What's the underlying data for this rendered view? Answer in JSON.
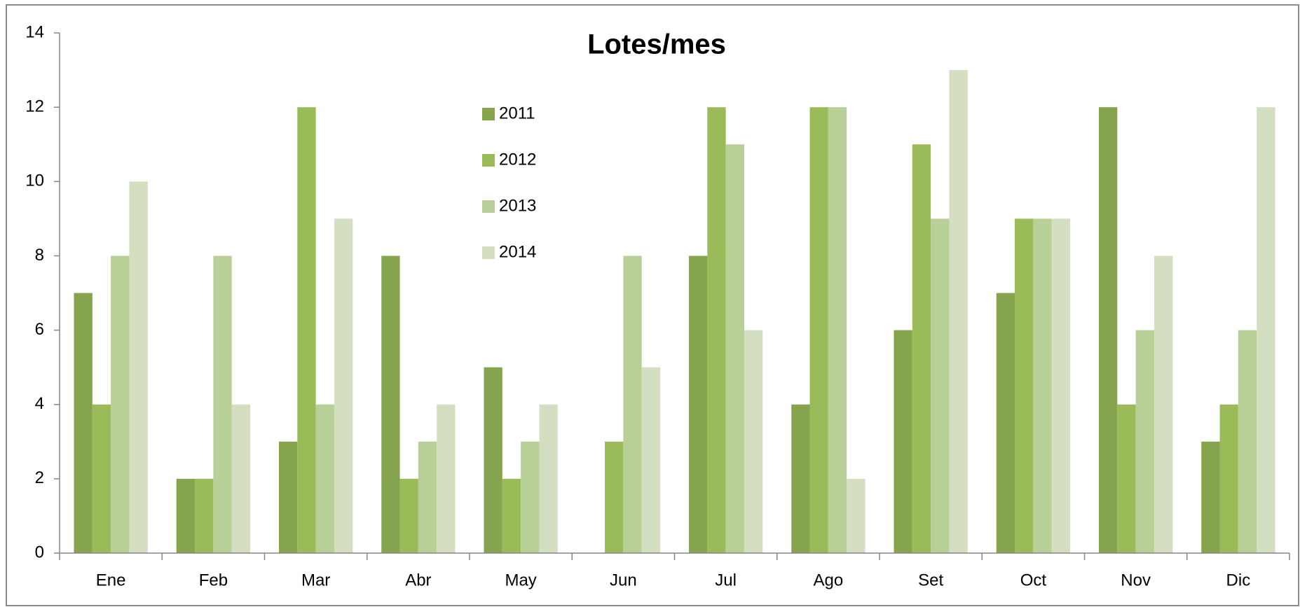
{
  "chart_data": {
    "type": "bar",
    "title": "Lotes/mes",
    "categories": [
      "Ene",
      "Feb",
      "Mar",
      "Abr",
      "May",
      "Jun",
      "Jul",
      "Ago",
      "Set",
      "Oct",
      "Nov",
      "Dic"
    ],
    "series": [
      {
        "name": "2011",
        "color": "#86a34d",
        "values": [
          7,
          2,
          3,
          8,
          5,
          0,
          8,
          4,
          6,
          7,
          12,
          3
        ]
      },
      {
        "name": "2012",
        "color": "#9bbb59",
        "values": [
          4,
          2,
          12,
          2,
          2,
          3,
          12,
          12,
          11,
          9,
          4,
          4
        ]
      },
      {
        "name": "2013",
        "color": "#b9cf98",
        "values": [
          8,
          8,
          4,
          3,
          3,
          8,
          11,
          12,
          9,
          9,
          6,
          6
        ]
      },
      {
        "name": "2014",
        "color": "#d3dfc0",
        "values": [
          10,
          4,
          9,
          4,
          4,
          5,
          6,
          2,
          13,
          9,
          8,
          12
        ]
      }
    ],
    "ylim": [
      0,
      14
    ],
    "yticks": [
      0,
      2,
      4,
      6,
      8,
      10,
      12,
      14
    ],
    "grid": false,
    "legend": "top"
  }
}
